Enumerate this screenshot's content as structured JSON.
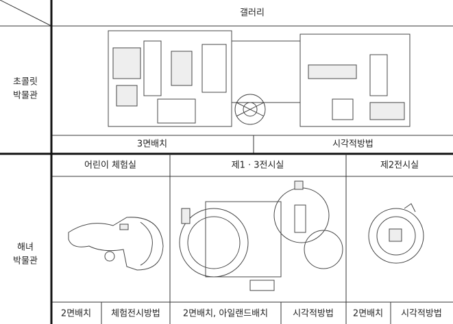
{
  "table": {
    "gallery_header": "갤러리",
    "chocolate": {
      "label": [
        "초콜릿",
        "박물관"
      ],
      "cells": [
        "3면배치",
        "시각적방법"
      ]
    },
    "haenyeo": {
      "label": [
        "해녀",
        "박물관"
      ],
      "rooms": [
        {
          "name": "어린이 체험실",
          "cells": [
            "2면배치",
            "체험전시방법"
          ]
        },
        {
          "name": "제1 · 3전시실",
          "cells": [
            "2면배치, 아일랜드배치",
            "시각적방법"
          ]
        },
        {
          "name": "제2전시실",
          "cells": [
            "2면배치",
            "시각적방법"
          ]
        }
      ]
    }
  }
}
